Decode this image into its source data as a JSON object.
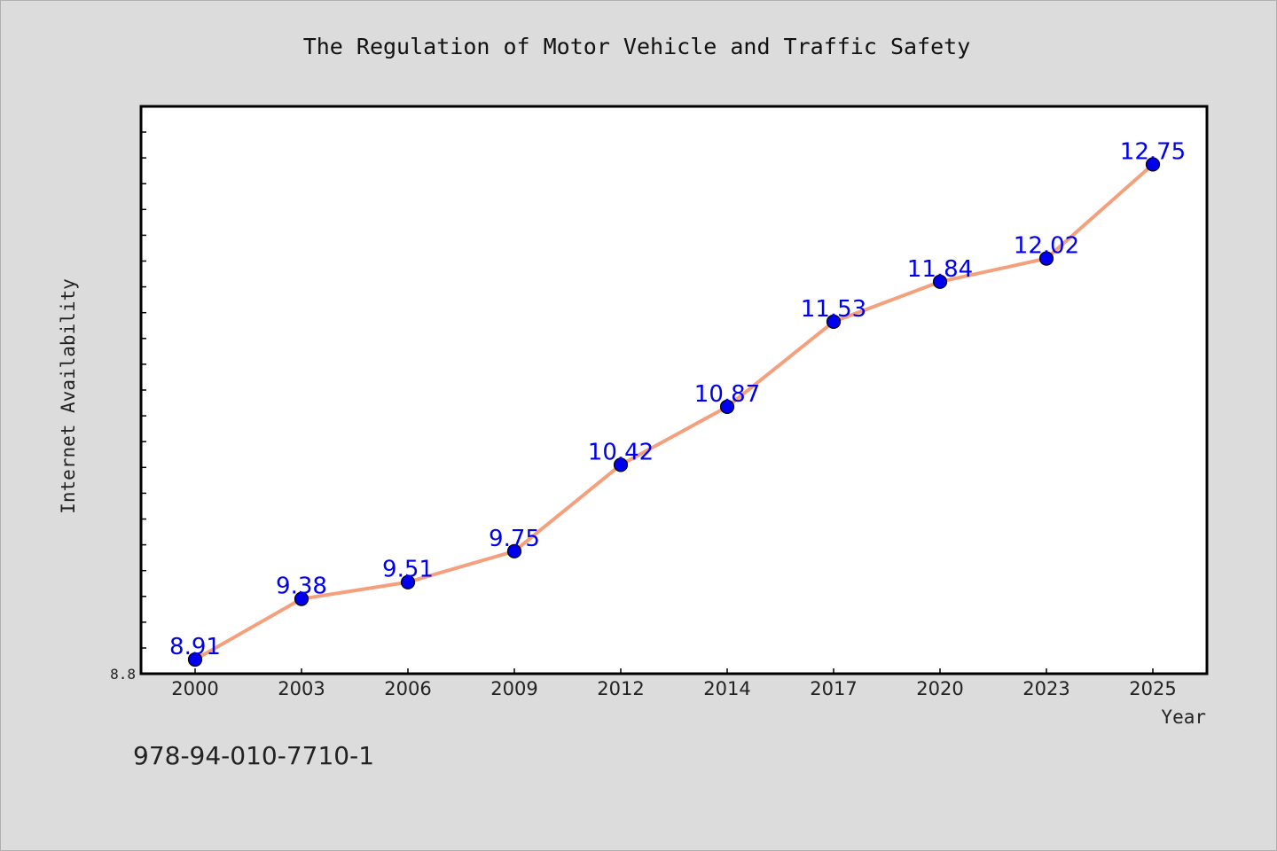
{
  "chart_data": {
    "type": "line",
    "title": "The Regulation of Motor Vehicle and Traffic Safety",
    "xlabel": "Year",
    "ylabel": "Internet Availability",
    "categories": [
      "2000",
      "2003",
      "2006",
      "2009",
      "2012",
      "2014",
      "2017",
      "2020",
      "2023",
      "2025"
    ],
    "series": [
      {
        "values": [
          8.91,
          9.38,
          9.51,
          9.75,
          10.42,
          10.87,
          11.53,
          11.84,
          12.02,
          12.75
        ]
      }
    ],
    "y_tick_labels": [
      "8.8"
    ],
    "ylim": [
      8.8,
      13.2
    ],
    "grid": false,
    "line_color": "#f4a07c",
    "marker_color": "#0000ee",
    "label_color": "#0000ee"
  },
  "footer": {
    "code": "978-94-010-7710-1"
  }
}
